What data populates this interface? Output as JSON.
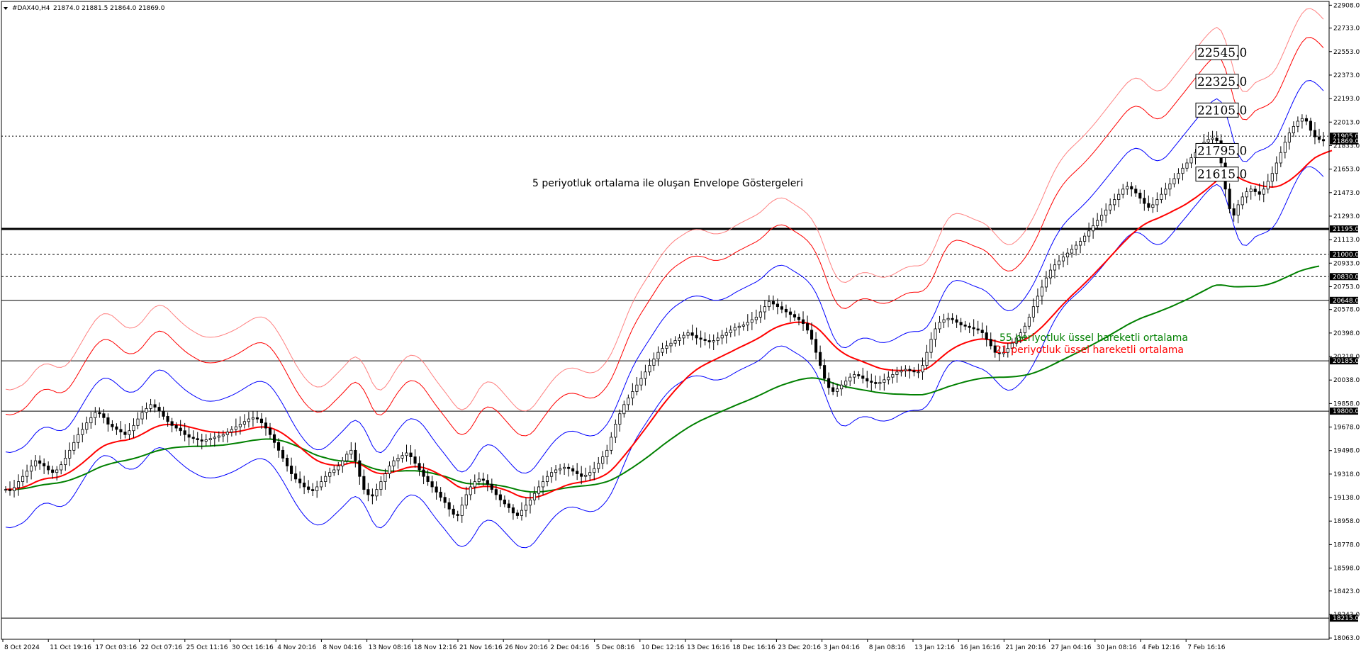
{
  "header": {
    "symbol": "#DAX40,H4",
    "ohlc": "21874.0 21881.5 21864.0 21869.0",
    "menu_icon": "triangle-down-icon"
  },
  "colors": {
    "background": "#ffffff",
    "candle": "#000000",
    "ema21": "#ff0000",
    "ema55": "#008000",
    "envelope_inner": "#0000ff",
    "envelope_mid": "#ff0000",
    "envelope_outer": "#ff8080",
    "price_tag_bg": "#000000",
    "price_tag_text": "#ffffff",
    "ann_green": "#008000",
    "ann_red": "#ff0000"
  },
  "annotations": {
    "envelope_note": "5 periyotluk ortalama ile oluşan Envelope Göstergeleri",
    "ema55_note": "55 periyotluk üssel hareketli ortalama",
    "ema21_note": "21 periyotluk üssel hareketli ortalama"
  },
  "chart_data": {
    "type": "candlestick",
    "timeframe": "H4",
    "ylim": [
      18053,
      22937
    ],
    "y_ticks": [
      "22908.0",
      "22733.0",
      "22553.0",
      "22373.0",
      "22193.0",
      "22013.0",
      "21833.0",
      "21653.0",
      "21473.0",
      "21293.0",
      "21113.0",
      "20933.0",
      "20753.0",
      "20578.0",
      "20398.0",
      "20218.0",
      "20038.0",
      "19858.0",
      "19678.0",
      "19498.0",
      "19318.0",
      "19138.0",
      "18958.0",
      "18778.0",
      "18598.0",
      "18423.0",
      "18243.0",
      "18063.0"
    ],
    "x_ticks": [
      "8 Oct 2024",
      "11 Oct 19:16",
      "17 Oct 03:16",
      "22 Oct 07:16",
      "25 Oct 11:16",
      "30 Oct 16:16",
      "4 Nov 20:16",
      "8 Nov 04:16",
      "13 Nov 08:16",
      "18 Nov 12:16",
      "21 Nov 16:16",
      "26 Nov 20:16",
      "2 Dec 04:16",
      "5 Dec 08:16",
      "10 Dec 12:16",
      "13 Dec 16:16",
      "18 Dec 16:16",
      "23 Dec 20:16",
      "3 Jan 04:16",
      "8 Jan 08:16",
      "13 Jan 12:16",
      "16 Jan 16:16",
      "21 Jan 20:16",
      "27 Jan 04:16",
      "30 Jan 08:16",
      "4 Feb 12:16",
      "7 Feb 16:16"
    ],
    "horizontal_levels": [
      {
        "price": 21195.0,
        "label": "21195.0",
        "style": "solid-thick"
      },
      {
        "price": 21000.0,
        "label": "21000.0",
        "style": "dashed"
      },
      {
        "price": 20830.0,
        "label": "20830.0",
        "style": "dashed"
      },
      {
        "price": 20648.0,
        "label": "20648.0",
        "style": "solid"
      },
      {
        "price": 20185.0,
        "label": "20185.0",
        "style": "solid"
      },
      {
        "price": 19800.0,
        "label": "19800.0",
        "style": "solid"
      },
      {
        "price": 18215.0,
        "label": "18215.0",
        "style": "solid"
      }
    ],
    "current_price": {
      "price": 21869.0,
      "label": "21869.0"
    },
    "grid_price": {
      "price": 21905.0,
      "label": "21905.0"
    },
    "right_labels": [
      "22545.0",
      "22325.0",
      "22105.0",
      "21795.0",
      "21615.0"
    ],
    "close": [
      19200,
      19190,
      19215,
      19260,
      19300,
      19340,
      19380,
      19420,
      19400,
      19380,
      19350,
      19330,
      19350,
      19390,
      19440,
      19500,
      19560,
      19620,
      19660,
      19710,
      19750,
      19790,
      19780,
      19750,
      19700,
      19680,
      19660,
      19640,
      19620,
      19650,
      19690,
      19740,
      19790,
      19820,
      19850,
      19830,
      19800,
      19760,
      19720,
      19690,
      19670,
      19650,
      19620,
      19600,
      19590,
      19580,
      19570,
      19580,
      19590,
      19600,
      19610,
      19620,
      19640,
      19660,
      19680,
      19700,
      19720,
      19740,
      19750,
      19740,
      19710,
      19670,
      19620,
      19560,
      19500,
      19440,
      19380,
      19320,
      19280,
      19250,
      19220,
      19200,
      19190,
      19220,
      19260,
      19300,
      19330,
      19350,
      19380,
      19420,
      19470,
      19500,
      19420,
      19300,
      19200,
      19160,
      19150,
      19200,
      19260,
      19320,
      19380,
      19420,
      19440,
      19460,
      19480,
      19450,
      19400,
      19350,
      19300,
      19260,
      19220,
      19180,
      19140,
      19100,
      19050,
      19010,
      19000,
      19080,
      19160,
      19220,
      19260,
      19280,
      19270,
      19240,
      19200,
      19160,
      19120,
      19090,
      19060,
      19020,
      19000,
      19040,
      19080,
      19120,
      19170,
      19220,
      19260,
      19300,
      19330,
      19350,
      19360,
      19370,
      19360,
      19340,
      19320,
      19300,
      19310,
      19330,
      19360,
      19400,
      19450,
      19500,
      19600,
      19700,
      19780,
      19850,
      19900,
      19950,
      20000,
      20050,
      20100,
      20150,
      20200,
      20250,
      20280,
      20300,
      20320,
      20340,
      20360,
      20380,
      20400,
      20380,
      20360,
      20350,
      20340,
      20330,
      20340,
      20360,
      20380,
      20400,
      20420,
      20440,
      20450,
      20460,
      20480,
      20500,
      20520,
      20560,
      20600,
      20640,
      20620,
      20600,
      20580,
      20560,
      20540,
      20520,
      20500,
      20470,
      20420,
      20350,
      20250,
      20150,
      20050,
      19980,
      19950,
      19970,
      20000,
      20030,
      20060,
      20080,
      20070,
      20050,
      20030,
      20020,
      20010,
      20020,
      20040,
      20060,
      20080,
      20100,
      20110,
      20120,
      20110,
      20100,
      20100,
      20150,
      20250,
      20350,
      20430,
      20480,
      20500,
      20510,
      20500,
      20480,
      20460,
      20450,
      20440,
      20430,
      20420,
      20400,
      20350,
      20300,
      20250,
      20240,
      20250,
      20280,
      20320,
      20360,
      20400,
      20450,
      20520,
      20600,
      20680,
      20750,
      20820,
      20880,
      20920,
      20950,
      20980,
      21010,
      21040,
      21070,
      21100,
      21140,
      21180,
      21220,
      21260,
      21300,
      21340,
      21380,
      21420,
      21460,
      21500,
      21520,
      21500,
      21470,
      21430,
      21390,
      21360,
      21380,
      21420,
      21460,
      21500,
      21540,
      21580,
      21620,
      21660,
      21700,
      21740,
      21780,
      21820,
      21860,
      21880,
      21890,
      21870,
      21700,
      21500,
      21350,
      21300,
      21380,
      21440,
      21480,
      21500,
      21480,
      21460,
      21500,
      21560,
      21620,
      21700,
      21780,
      21860,
      21930,
      21980,
      22020,
      22040,
      22020,
      21950,
      21900,
      21880,
      21869
    ],
    "ema21": [
      19200,
      19202,
      19203,
      19208,
      19216,
      19227,
      19241,
      19257,
      19270,
      19280,
      19286,
      19289,
      19293,
      19302,
      19315,
      19332,
      19353,
      19377,
      19402,
      19430,
      19458,
      19488,
      19513,
      19534,
      19548,
      19558,
      19566,
      19573,
      19576,
      19584,
      19594,
      19607,
      19624,
      19642,
      19661,
      19676,
      19688,
      19695,
      19698,
      19698,
      19696,
      19693,
      19687,
      19679,
      19671,
      19663,
      19654,
      19647,
      19642,
      19639,
      19636,
      19635,
      19636,
      19638,
      19642,
      19647,
      19654,
      19662,
      19670,
      19676,
      19679,
      19678,
      19673,
      19662,
      19647,
      19628,
      19605,
      19579,
      19552,
      19524,
      19496,
      19469,
      19443,
      19422,
      19407,
      19397,
      19390,
      19386,
      19385,
      19388,
      19396,
      19405,
      19406,
      19396,
      19378,
      19358,
      19339,
      19327,
      19321,
      19322,
      19327,
      19335,
      19345,
      19355,
      19366,
      19372,
      19375,
      19373,
      19367,
      19357,
      19344,
      19328,
      19311,
      19292,
      19270,
      19246,
      19224,
      19210,
      19205,
      19206,
      19212,
      19218,
      19223,
      19224,
      19222,
      19217,
      19208,
      19198,
      19186,
      19171,
      19155,
      19144,
      19138,
      19136,
      19139,
      19146,
      19156,
      19169,
      19184,
      19198,
      19212,
      19226,
      19237,
      19246,
      19252,
      19257,
      19262,
      19269,
      19277,
      19288,
      19303,
      19321,
      19347,
      19380,
      19418,
      19457,
      19497,
      19538,
      19580,
      19623,
      19666,
      19710,
      19755,
      19800,
      19843,
      19884,
      19923,
      19961,
      19997,
      20032,
      20065,
      20093,
      20118,
      20139,
      20157,
      20174,
      20189,
      20205,
      20221,
      20237,
      20253,
      20270,
      20286,
      20301,
      20317,
      20333,
      20350,
      20368,
      20389,
      20411,
      20430,
      20445,
      20457,
      20467,
      20474,
      20479,
      20481,
      20480,
      20475,
      20463,
      20443,
      20416,
      20382,
      20345,
      20310,
      20279,
      20254,
      20233,
      20216,
      20203,
      20191,
      20178,
      20165,
      20152,
      20139,
      20128,
      20121,
      20116,
      20113,
      20112,
      20111,
      20112,
      20112,
      20111,
      20110,
      20114,
      20126,
      20146,
      20172,
      20200,
      20228,
      20254,
      20276,
      20295,
      20310,
      20323,
      20334,
      20343,
      20349,
      20353,
      20350,
      20346,
      20337,
      20329,
      20322,
      20320,
      20323,
      20330,
      20336,
      20350,
      20366,
      20387,
      20415,
      20444,
      20477,
      20513,
      20548,
      20585,
      20619,
      20652,
      20685,
      20716,
      20746,
      20778,
      20810,
      20843,
      20877,
      20912,
      20946,
      20982,
      21017,
      21052,
      21086,
      21119,
      21152,
      21180,
      21207,
      21229,
      21247,
      21262,
      21274,
      21289,
      21304,
      21320,
      21337,
      21353,
      21371,
      21390,
      21412,
      21434,
      21458,
      21482,
      21509,
      21537,
      21564,
      21589,
      21610,
      21615,
      21607,
      21591,
      21572,
      21559,
      21546,
      21539,
      21530,
      21522,
      21518,
      21515,
      21519,
      21529,
      21546,
      21565,
      21590,
      21618,
      21648,
      21681,
      21713,
      21740,
      21757,
      21772,
      21785,
      21795
    ],
    "ema55": [
      19200,
      19200,
      19201,
      19202,
      19206,
      19211,
      19217,
      19225,
      19231,
      19237,
      19241,
      19245,
      19249,
      19255,
      19262,
      19272,
      19283,
      19296,
      19309,
      19323,
      19339,
      19355,
      19370,
      19382,
      19392,
      19401,
      19409,
      19416,
      19421,
      19429,
      19437,
      19446,
      19457,
      19468,
      19480,
      19491,
      19500,
      19507,
      19513,
      19518,
      19522,
      19525,
      19527,
      19529,
      19530,
      19531,
      19530,
      19532,
      19533,
      19536,
      19538,
      19540,
      19544,
      19549,
      19554,
      19559,
      19565,
      19571,
      19576,
      19580,
      19584,
      19586,
      19586,
      19583,
      19578,
      19571,
      19561,
      19549,
      19536,
      19522,
      19507,
      19491,
      19475,
      19462,
      19451,
      19442,
      19433,
      19426,
      19421,
      19417,
      19416,
      19415,
      19410,
      19401,
      19388,
      19375,
      19363,
      19354,
      19347,
      19343,
      19341,
      19341,
      19341,
      19342,
      19344,
      19343,
      19343,
      19340,
      19336,
      19331,
      19325,
      19317,
      19309,
      19300,
      19289,
      19276,
      19264,
      19255,
      19247,
      19244,
      19243,
      19243,
      19242,
      19241,
      19238,
      19234,
      19229,
      19223,
      19216,
      19207,
      19198,
      19191,
      19186,
      19182,
      19181,
      19182,
      19184,
      19188,
      19193,
      19199,
      19204,
      19210,
      19215,
      19219,
      19223,
      19226,
      19229,
      19233,
      19237,
      19243,
      19251,
      19260,
      19273,
      19289,
      19307,
      19326,
      19347,
      19368,
      19390,
      19413,
      19436,
      19460,
      19486,
      19511,
      19537,
      19561,
      19585,
      19608,
      19631,
      19653,
      19674,
      19693,
      19711,
      19728,
      19743,
      19758,
      19772,
      19786,
      19800,
      19814,
      19828,
      19842,
      19856,
      19869,
      19882,
      19896,
      19910,
      19925,
      19941,
      19957,
      19972,
      19986,
      19999,
      20010,
      20020,
      20030,
      20039,
      20046,
      20051,
      20054,
      20052,
      20047,
      20038,
      20027,
      20015,
      20004,
      19994,
      19986,
      19980,
      19974,
      19968,
      19962,
      19957,
      19951,
      19945,
      19941,
      19937,
      19934,
      19931,
      19930,
      19929,
      19928,
      19926,
      19925,
      19925,
      19926,
      19932,
      19941,
      19952,
      19964,
      19975,
      19987,
      19997,
      20007,
      20016,
      20025,
      20033,
      20040,
      20047,
      20052,
      20055,
      20057,
      20058,
      20059,
      20059,
      20061,
      20063,
      20066,
      20070,
      20075,
      20082,
      20092,
      20103,
      20117,
      20131,
      20147,
      20163,
      20179,
      20195,
      20211,
      20227,
      20244,
      20260,
      20277,
      20294,
      20312,
      20329,
      20347,
      20365,
      20384,
      20403,
      20422,
      20441,
      20460,
      20477,
      20493,
      20508,
      20521,
      20533,
      20545,
      20557,
      20570,
      20583,
      20596,
      20610,
      20625,
      20640,
      20655,
      20671,
      20688,
      20705,
      20722,
      20739,
      20756,
      20765,
      20766,
      20762,
      20756,
      20753,
      20752,
      20753,
      20754,
      20755,
      20755,
      20758,
      20763,
      20770,
      20780,
      20792,
      20806,
      20821,
      20836,
      20851,
      20866,
      20878,
      20888,
      20896,
      20904,
      20910
    ]
  }
}
